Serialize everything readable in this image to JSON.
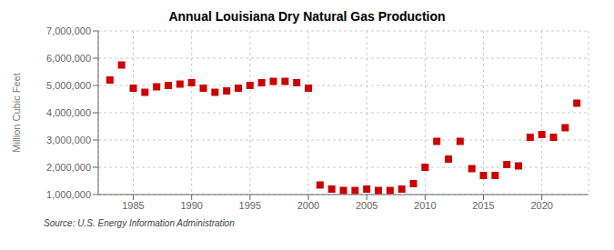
{
  "chart_data": {
    "type": "scatter",
    "title": "Annual Louisiana Dry Natural Gas Production",
    "ylabel": "Million Cubic Feet",
    "annotations": [
      "Source: U.S. Energy Information Administration"
    ],
    "x": [
      1983,
      1984,
      1985,
      1986,
      1987,
      1988,
      1989,
      1990,
      1991,
      1992,
      1993,
      1994,
      1995,
      1996,
      1997,
      1998,
      1999,
      2000,
      2001,
      2002,
      2003,
      2004,
      2005,
      2006,
      2007,
      2008,
      2009,
      2010,
      2011,
      2012,
      2013,
      2014,
      2015,
      2016,
      2017,
      2018,
      2019,
      2020,
      2021,
      2022,
      2023
    ],
    "values": [
      5200000,
      5750000,
      4900000,
      4750000,
      4950000,
      5000000,
      5050000,
      5100000,
      4900000,
      4750000,
      4800000,
      4900000,
      5000000,
      5100000,
      5150000,
      5150000,
      5100000,
      4900000,
      1350000,
      1200000,
      1150000,
      1150000,
      1200000,
      1150000,
      1150000,
      1200000,
      1400000,
      2000000,
      2950000,
      2300000,
      2950000,
      1950000,
      1700000,
      1700000,
      2100000,
      2050000,
      3100000,
      3200000,
      3100000,
      3450000,
      4350000
    ],
    "color": "#cc0000",
    "marker": "square",
    "grid": true,
    "xlim": [
      1982,
      2024
    ],
    "xticks": [
      1985,
      1990,
      1995,
      2000,
      2005,
      2010,
      2015,
      2020
    ],
    "ylim": [
      1000000,
      7000000
    ],
    "yticks": [
      {
        "value": 1000000,
        "label": "1,000,000"
      },
      {
        "value": 2000000,
        "label": "2,000,000"
      },
      {
        "value": 3000000,
        "label": "3,000,000"
      },
      {
        "value": 4000000,
        "label": "4,000,000"
      },
      {
        "value": 5000000,
        "label": "5,000,000"
      },
      {
        "value": 6000000,
        "label": "6,000,000"
      },
      {
        "value": 7000000,
        "label": "7,000,000"
      }
    ]
  }
}
